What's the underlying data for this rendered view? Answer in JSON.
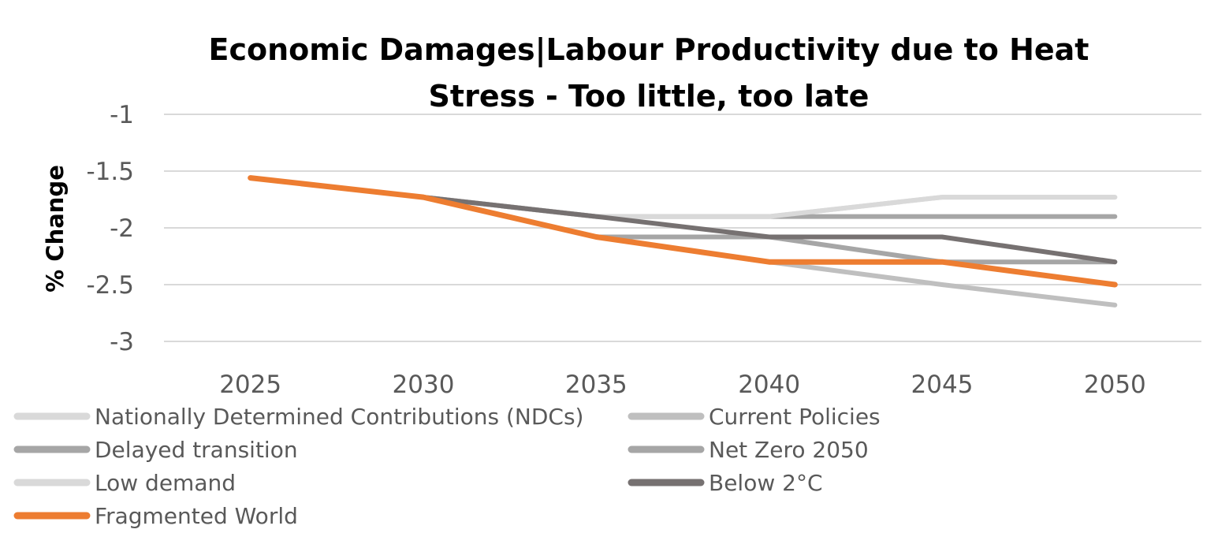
{
  "chart_data": {
    "type": "line",
    "title_lines": [
      "Economic Damages|Labour Productivity due to Heat",
      "Stress - Too little, too late"
    ],
    "xlabel": "",
    "ylabel": "% Change",
    "x": [
      "2025",
      "2030",
      "2035",
      "2040",
      "2045",
      "2050"
    ],
    "ylim": [
      -3,
      -1
    ],
    "yticks": [
      -1,
      -1.5,
      -2,
      -2.5,
      -3
    ],
    "ytick_labels": [
      "-1",
      "-1.5",
      "-2",
      "-2.5",
      "-3"
    ],
    "grid": true,
    "legend_position": "bottom",
    "series": [
      {
        "name": "Nationally Determined Contributions (NDCs)",
        "color": "#d9d9d9",
        "values": [
          -1.56,
          -1.73,
          -1.9,
          -1.9,
          -1.73,
          -1.73
        ]
      },
      {
        "name": "Current Policies",
        "color": "#bfbfbf",
        "values": [
          -1.56,
          -1.73,
          -2.08,
          -2.3,
          -2.5,
          -2.68
        ]
      },
      {
        "name": "Delayed transition",
        "color": "#a6a6a6",
        "values": [
          -1.56,
          -1.73,
          -1.9,
          -1.9,
          -1.9,
          -1.9
        ]
      },
      {
        "name": "Net Zero 2050",
        "color": "#a6a6a6",
        "values": [
          -1.56,
          -1.73,
          -2.08,
          -2.08,
          -2.3,
          -2.3
        ]
      },
      {
        "name": "Low demand",
        "color": "#d9d9d9",
        "values": [
          -1.56,
          -1.73,
          -1.9,
          -1.9,
          -1.73,
          -1.73
        ]
      },
      {
        "name": "Below 2°C",
        "color": "#767171",
        "values": [
          -1.56,
          -1.73,
          -1.9,
          -2.08,
          -2.08,
          -2.3
        ]
      },
      {
        "name": "Fragmented World",
        "color": "#ed7d31",
        "values": [
          -1.56,
          -1.73,
          -2.08,
          -2.3,
          -2.3,
          -2.5
        ]
      }
    ]
  }
}
